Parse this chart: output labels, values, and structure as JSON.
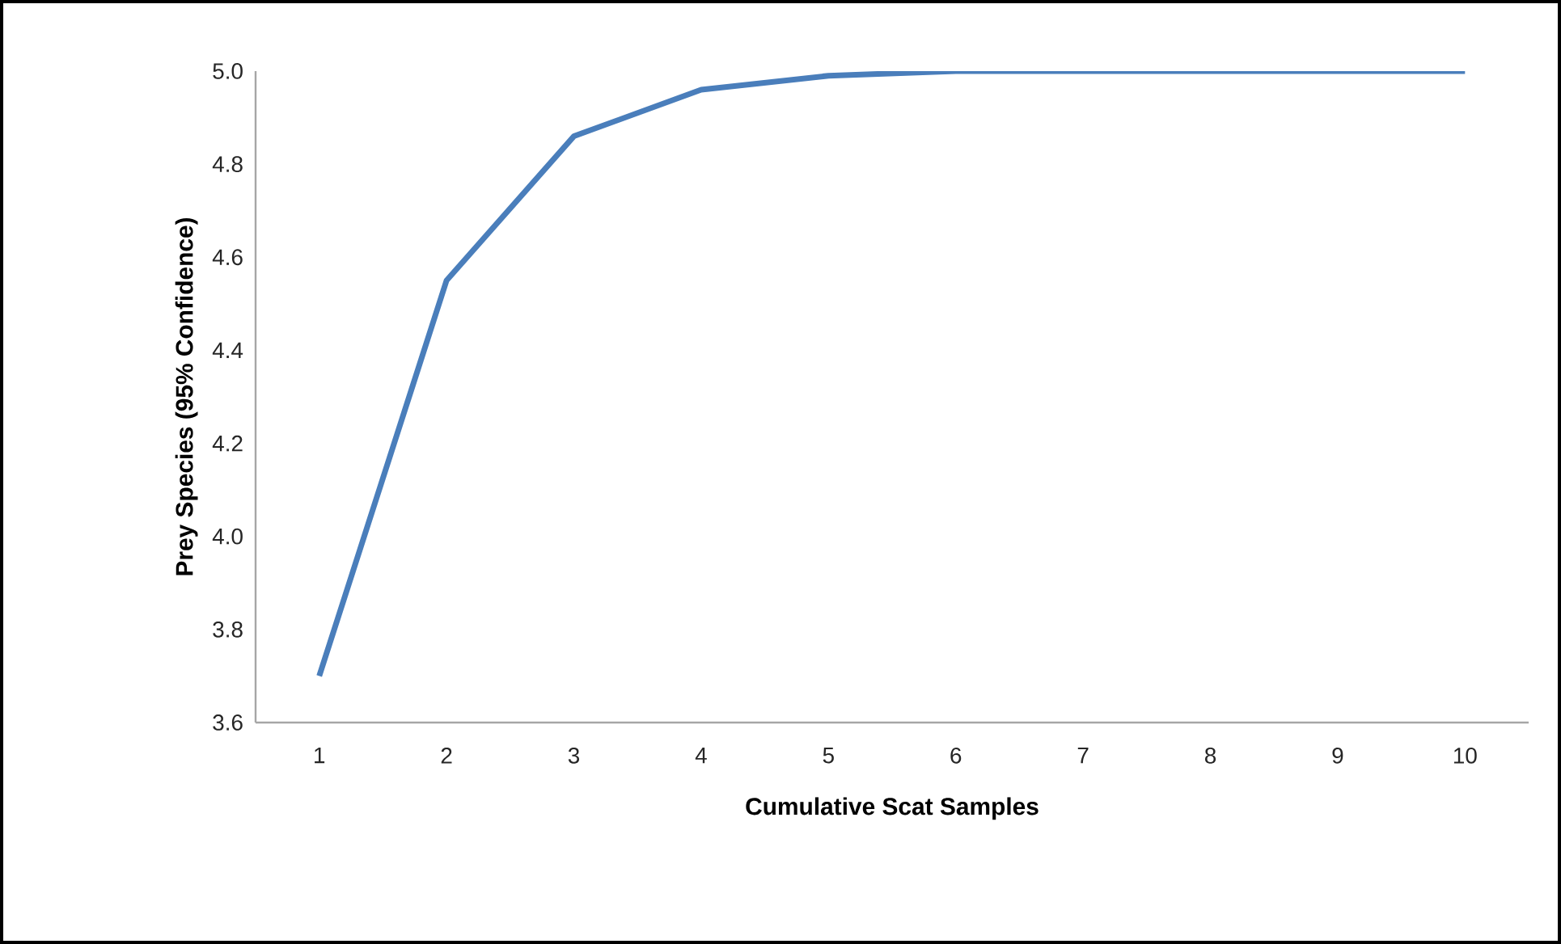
{
  "chart_data": {
    "type": "line",
    "xlabel": "Cumulative Scat Samples",
    "ylabel": "Prey Species (95% Confidence)",
    "categories": [
      "1",
      "2",
      "3",
      "4",
      "5",
      "6",
      "7",
      "8",
      "9",
      "10"
    ],
    "series": [
      {
        "color": "#4a7ebb",
        "values": [
          3.7,
          4.55,
          4.86,
          4.96,
          4.99,
          5.0,
          5.0,
          5.0,
          5.0,
          5.0
        ]
      }
    ],
    "ylim": [
      3.6,
      5.0
    ],
    "yticks": [
      {
        "value": 3.6,
        "label": "3.6"
      },
      {
        "value": 3.8,
        "label": "3.8"
      },
      {
        "value": 4.0,
        "label": "4.0"
      },
      {
        "value": 4.2,
        "label": "4.2"
      },
      {
        "value": 4.4,
        "label": "4.4"
      },
      {
        "value": 4.6,
        "label": "4.6"
      },
      {
        "value": 4.8,
        "label": "4.8"
      },
      {
        "value": 5.0,
        "label": "5.0"
      }
    ],
    "grid": false,
    "marker": "none",
    "line_style": "solid"
  }
}
